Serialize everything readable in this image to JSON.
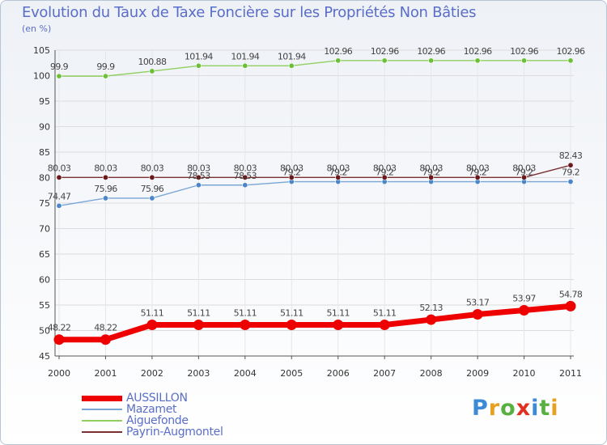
{
  "title": "Evolution du Taux de Taxe Foncière sur les Propriétés Non Bâties",
  "subtitle": "(en %)",
  "logo": {
    "text": "Proxiti",
    "letter_colors": [
      "#3a8ad8",
      "#e8a020",
      "#58b040",
      "#e03020",
      "#3a8ad8",
      "#58b040",
      "#e8a020"
    ]
  },
  "chart_data": {
    "type": "line",
    "title": "Evolution du Taux de Taxe Foncière sur les Propriétés Non Bâties",
    "ylabel": "(en %)",
    "categories": [
      "2000",
      "2001",
      "2002",
      "2003",
      "2004",
      "2005",
      "2006",
      "2007",
      "2008",
      "2009",
      "2010",
      "2011"
    ],
    "ylim": [
      45,
      105
    ],
    "yticks": [
      45,
      50,
      55,
      60,
      65,
      70,
      75,
      80,
      85,
      90,
      95,
      100,
      105
    ],
    "legend_position": "bottom-left",
    "series": [
      {
        "name": "AUSSILLON",
        "color": "#ee0000",
        "dot_color": "#ee0000",
        "emphasis": true,
        "values": [
          48.22,
          48.22,
          51.11,
          51.11,
          51.11,
          51.11,
          51.11,
          51.11,
          52.13,
          53.17,
          53.97,
          54.78
        ],
        "labels": [
          "48.22",
          "48.22",
          "51.11",
          "51.11",
          "51.11",
          "51.11",
          "51.11",
          "51.11",
          "52.13",
          "53.17",
          "53.97",
          "54.78"
        ]
      },
      {
        "name": "Mazamet",
        "color": "#7aa6d6",
        "dot_color": "#4a86c8",
        "emphasis": false,
        "values": [
          74.47,
          75.96,
          75.96,
          78.53,
          78.53,
          79.2,
          79.2,
          79.2,
          79.2,
          79.2,
          79.2,
          79.2
        ],
        "labels": [
          "74.47",
          "75.96",
          "75.96",
          "78.53",
          "78.53",
          "79.2",
          "79.2",
          "79.2",
          "79.2",
          "79.2",
          "79.2",
          "79.2"
        ]
      },
      {
        "name": "Aiguefonde",
        "color": "#90d060",
        "dot_color": "#6cc038",
        "emphasis": false,
        "values": [
          99.9,
          99.9,
          100.88,
          101.94,
          101.94,
          101.94,
          102.96,
          102.96,
          102.96,
          102.96,
          102.96,
          102.96
        ],
        "labels": [
          "99.9",
          "99.9",
          "100.88",
          "101.94",
          "101.94",
          "101.94",
          "102.96",
          "102.96",
          "102.96",
          "102.96",
          "102.96",
          "102.96"
        ]
      },
      {
        "name": "Payrin-Augmontel",
        "color": "#7a3030",
        "dot_color": "#6a1a1a",
        "emphasis": false,
        "values": [
          80.03,
          80.03,
          80.03,
          80.03,
          80.03,
          80.03,
          80.03,
          80.03,
          80.03,
          80.03,
          80.03,
          82.43
        ],
        "labels": [
          "80.03",
          "80.03",
          "80.03",
          "80.03",
          "80.03",
          "80.03",
          "80.03",
          "80.03",
          "80.03",
          "80.03",
          "80.03",
          "82.43"
        ]
      }
    ]
  }
}
